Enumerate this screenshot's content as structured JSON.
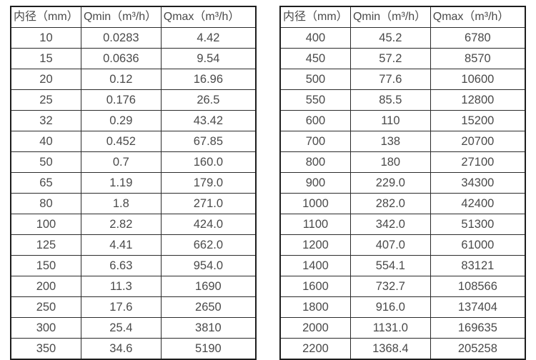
{
  "page": {
    "background_color": "#ffffff",
    "text_color": "#4a4a4a",
    "outer_border_color": "#1d1d1d",
    "inner_border_color": "#2b2b2b"
  },
  "tables": [
    {
      "name": "flow-spec-table-left",
      "headers": [
        "内径（mm）",
        "Qmin（m³/h）",
        "Qmax（m³/h）"
      ],
      "rows": [
        [
          "10",
          "0.0283",
          "4.42"
        ],
        [
          "15",
          "0.0636",
          "9.54"
        ],
        [
          "20",
          "0.12",
          "16.96"
        ],
        [
          "25",
          "0.176",
          "26.5"
        ],
        [
          "32",
          "0.29",
          "43.42"
        ],
        [
          "40",
          "0.452",
          "67.85"
        ],
        [
          "50",
          "0.7",
          "160.0"
        ],
        [
          "65",
          "1.19",
          "179.0"
        ],
        [
          "80",
          "1.8",
          "271.0"
        ],
        [
          "100",
          "2.82",
          "424.0"
        ],
        [
          "125",
          "4.41",
          "662.0"
        ],
        [
          "150",
          "6.63",
          "954.0"
        ],
        [
          "200",
          "11.3",
          "1690"
        ],
        [
          "250",
          "17.6",
          "2650"
        ],
        [
          "300",
          "25.4",
          "3810"
        ],
        [
          "350",
          "34.6",
          "5190"
        ]
      ]
    },
    {
      "name": "flow-spec-table-right",
      "headers": [
        "内径（mm）",
        "Qmin（m³/h）",
        "Qmax（m³/h）"
      ],
      "rows": [
        [
          "400",
          "45.2",
          "6780"
        ],
        [
          "450",
          "57.2",
          "8570"
        ],
        [
          "500",
          "77.6",
          "10600"
        ],
        [
          "550",
          "85.5",
          "12800"
        ],
        [
          "600",
          "110",
          "15200"
        ],
        [
          "700",
          "138",
          "20700"
        ],
        [
          "800",
          "180",
          "27100"
        ],
        [
          "900",
          "229.0",
          "34300"
        ],
        [
          "1000",
          "282.0",
          "42400"
        ],
        [
          "1100",
          "342.0",
          "51300"
        ],
        [
          "1200",
          "407.0",
          "61000"
        ],
        [
          "1400",
          "554.1",
          "83121"
        ],
        [
          "1600",
          "732.7",
          "108566"
        ],
        [
          "1800",
          "916.0",
          "137404"
        ],
        [
          "2000",
          "1131.0",
          "169635"
        ],
        [
          "2200",
          "1368.4",
          "205258"
        ]
      ]
    }
  ],
  "column_semantics": {
    "header_names": [
      "header-inner-diameter",
      "header-qmin",
      "header-qmax"
    ],
    "cell_names": [
      "cell-inner-diameter",
      "cell-qmin",
      "cell-qmax"
    ],
    "column_widths_percent": [
      28.7,
      32.6,
      38.7
    ]
  }
}
